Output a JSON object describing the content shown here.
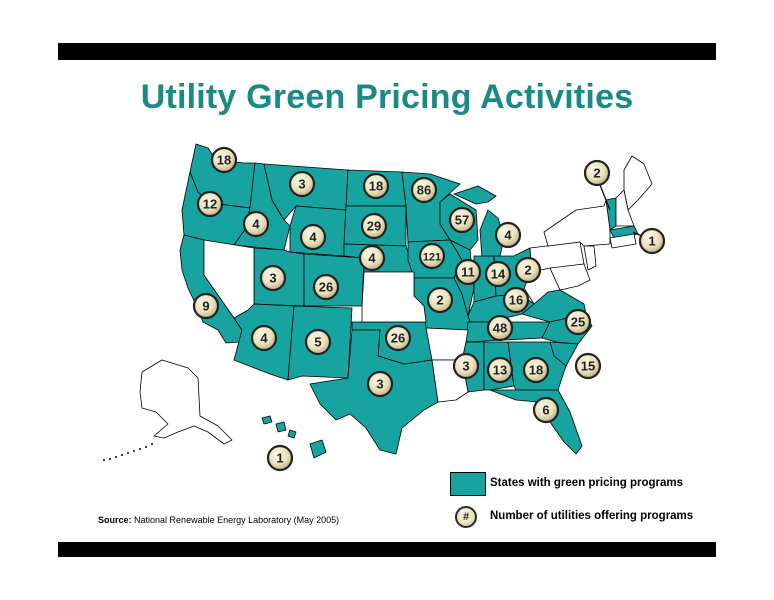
{
  "title": "Utility Green Pricing Activities",
  "colors": {
    "title": "#1a8a84",
    "program_state": "#17a3a0",
    "no_program": "#ffffff",
    "badge": "#ece5c4"
  },
  "badges": [
    {
      "state": "WA",
      "count": "18"
    },
    {
      "state": "OR",
      "count": "12"
    },
    {
      "state": "ID",
      "count": "4"
    },
    {
      "state": "MT",
      "count": "3"
    },
    {
      "state": "WY",
      "count": "4"
    },
    {
      "state": "ND",
      "count": "18"
    },
    {
      "state": "SD",
      "count": "29"
    },
    {
      "state": "NE",
      "count": "4"
    },
    {
      "state": "MN",
      "count": "86"
    },
    {
      "state": "WI",
      "count": "57"
    },
    {
      "state": "IA",
      "count": "121"
    },
    {
      "state": "UT",
      "count": "3"
    },
    {
      "state": "CO",
      "count": "26"
    },
    {
      "state": "CA",
      "count": "9"
    },
    {
      "state": "AZ",
      "count": "4"
    },
    {
      "state": "NM",
      "count": "5"
    },
    {
      "state": "OK",
      "count": "26"
    },
    {
      "state": "TX",
      "count": "3"
    },
    {
      "state": "MO",
      "count": "2"
    },
    {
      "state": "IL",
      "count": "11"
    },
    {
      "state": "IN",
      "count": "14"
    },
    {
      "state": "OH",
      "count": "2"
    },
    {
      "state": "MI",
      "count": "4"
    },
    {
      "state": "KY",
      "count": "16"
    },
    {
      "state": "TN",
      "count": "48"
    },
    {
      "state": "VA",
      "count": "25"
    },
    {
      "state": "NC",
      "count": "15"
    },
    {
      "state": "MS",
      "count": "3"
    },
    {
      "state": "AL",
      "count": "13"
    },
    {
      "state": "GA",
      "count": "18"
    },
    {
      "state": "FL",
      "count": "6"
    },
    {
      "state": "VT",
      "count": "2"
    },
    {
      "state": "MA",
      "count": "1"
    },
    {
      "state": "HI",
      "count": "1"
    }
  ],
  "legend": {
    "states_label": "States with green pricing programs",
    "number_label": "Number of utilities offering programs",
    "number_symbol": "#"
  },
  "source": {
    "label": "Source:",
    "text": "National Renewable Energy Laboratory (May 2005)"
  }
}
